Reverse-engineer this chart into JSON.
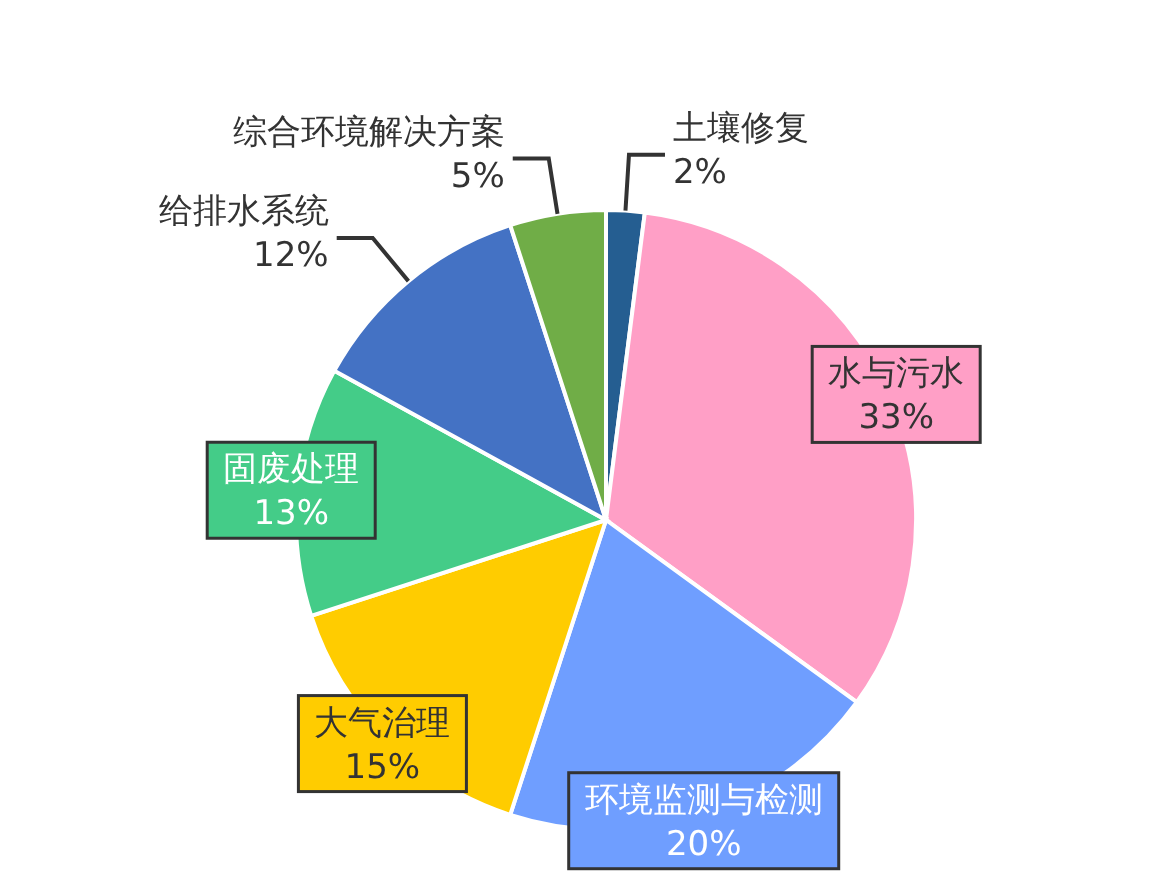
{
  "chart_data": {
    "type": "pie",
    "categories": [
      "土壤修复",
      "水与污水",
      "环境监测与检测",
      "大气治理",
      "固废处理",
      "给排水系统",
      "综合环境解决方案"
    ],
    "values": [
      2,
      33,
      20,
      15,
      13,
      12,
      5
    ],
    "value_labels": [
      "2%",
      "33%",
      "20%",
      "15%",
      "13%",
      "12%",
      "5%"
    ],
    "colors": [
      "#255e91",
      "#ff9fc6",
      "#6f9eff",
      "#ffcc00",
      "#44cc88",
      "#4472c4",
      "#70ad47"
    ],
    "legend": false
  }
}
